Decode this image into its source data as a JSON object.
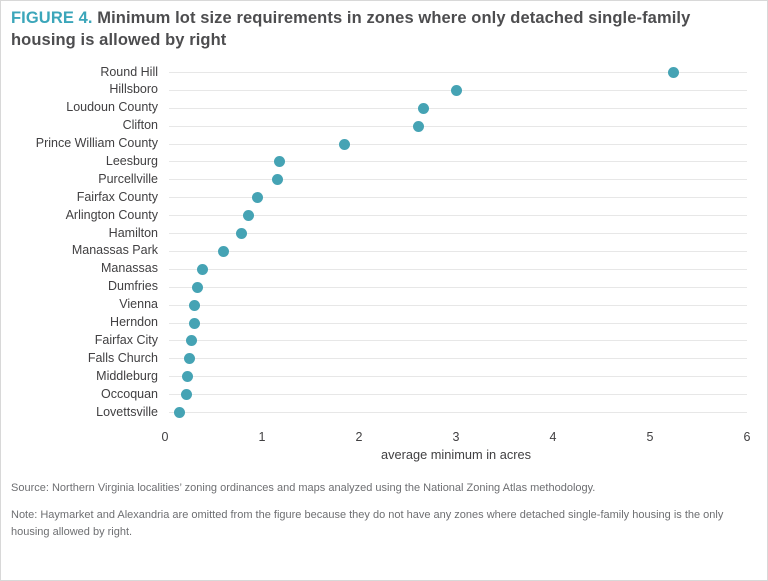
{
  "figure": {
    "label": "FIGURE 4.",
    "title": "Minimum lot size requirements in zones where only detached single-family housing is allowed by right"
  },
  "chart_data": {
    "type": "scatter",
    "subtype": "horizontal-dot-plot",
    "title": "Minimum lot size requirements in zones where only detached single-family housing is allowed by right",
    "categories": [
      "Round Hill",
      "Hillsboro",
      "Loudoun County",
      "Clifton",
      "Prince William County",
      "Leesburg",
      "Purcellville",
      "Fairfax County",
      "Arlington County",
      "Hamilton",
      "Manassas Park",
      "Manassas",
      "Dumfries",
      "Vienna",
      "Herndon",
      "Fairfax City",
      "Falls Church",
      "Middleburg",
      "Occoquan",
      "Lovettsville"
    ],
    "values": [
      5.24,
      3.0,
      2.66,
      2.61,
      1.85,
      1.18,
      1.16,
      0.95,
      0.86,
      0.79,
      0.6,
      0.39,
      0.33,
      0.3,
      0.3,
      0.27,
      0.25,
      0.23,
      0.22,
      0.15
    ],
    "xlabel": "average minimum in acres",
    "ylabel": "",
    "xlim": [
      0,
      6
    ],
    "xticks": [
      0,
      1,
      2,
      3,
      4,
      5,
      6
    ],
    "grid": "horizontal-row-lines",
    "legend": "none"
  },
  "footer": {
    "source": "Source: Northern Virginia localities’ zoning ordinances and maps analyzed using the National Zoning Atlas methodology.",
    "note": "Note: Haymarket and Alexandria are omitted from the figure because they do not have any zones where detached single-family housing is the only housing allowed by right."
  },
  "colors": {
    "accent_teal": "#3ba6ba",
    "dot": "#45a3b4",
    "title_text": "#4d4d4f",
    "axis_text": "#414042",
    "footer_text": "#6e6f72",
    "gridline": "#e7e7e7"
  }
}
